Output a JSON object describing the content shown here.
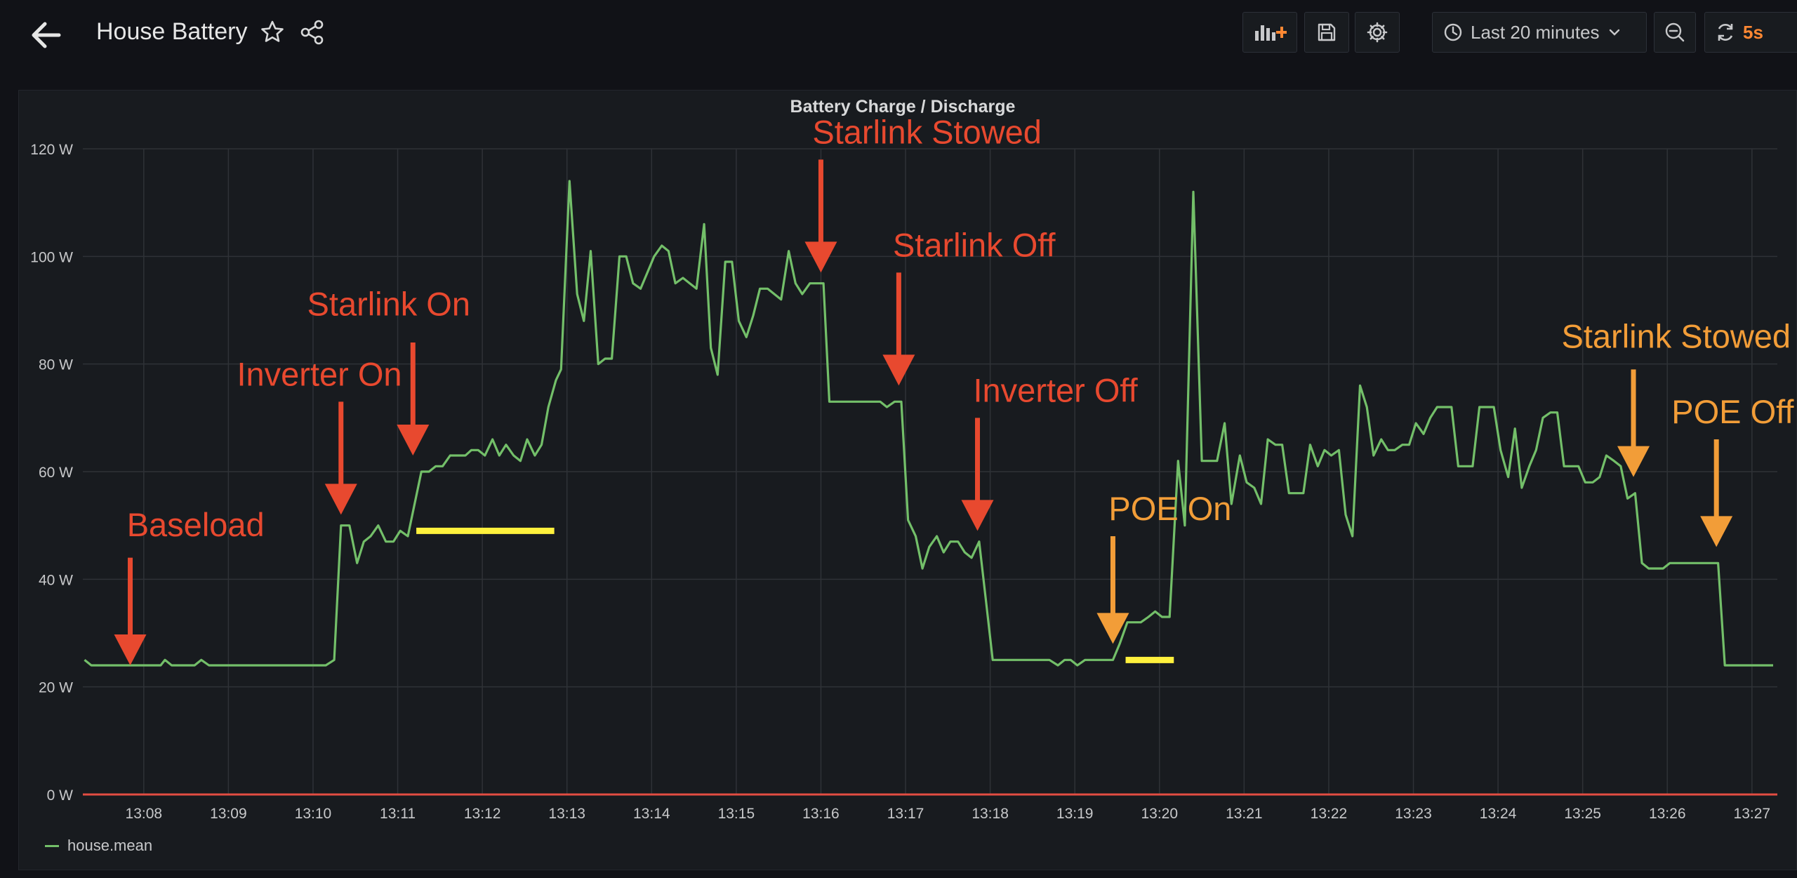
{
  "header": {
    "title": "House Battery",
    "time_range": "Last 20 minutes",
    "refresh_interval": "5s"
  },
  "icons": {
    "back": "back-arrow-icon",
    "star": "star-icon",
    "share": "share-icon",
    "add_panel": "add-panel-icon",
    "save": "save-icon",
    "settings": "gear-icon",
    "clock": "clock-icon",
    "zoom_out": "zoom-out-icon",
    "refresh": "refresh-icon"
  },
  "colors": {
    "series": "#73bf69",
    "annotation_red": "#e8492f",
    "annotation_orange": "#f29d38",
    "highlight_yellow": "#fff13d",
    "zero_line": "#e24d42",
    "refresh_accent": "#ff8833"
  },
  "chart_data": {
    "type": "line",
    "title": "Battery Charge / Discharge",
    "ylim": [
      0,
      120
    ],
    "y_ticks": [
      "0 W",
      "20 W",
      "40 W",
      "60 W",
      "80 W",
      "100 W",
      "120 W"
    ],
    "x_ticks": [
      "13:08",
      "13:09",
      "13:10",
      "13:11",
      "13:12",
      "13:13",
      "13:14",
      "13:15",
      "13:16",
      "13:17",
      "13:18",
      "13:19",
      "13:20",
      "13:21",
      "13:22",
      "13:23",
      "13:24",
      "13:25",
      "13:26",
      "13:27"
    ],
    "x_range_minutes": [
      7.28,
      27.3
    ],
    "x_unit_note": "minutes past 13:00",
    "grid": true,
    "legend_position": "bottom-left",
    "series": [
      {
        "name": "house.mean",
        "points": [
          [
            7.3,
            25
          ],
          [
            7.38,
            24
          ],
          [
            8.2,
            24
          ],
          [
            8.25,
            25
          ],
          [
            8.33,
            24
          ],
          [
            8.6,
            24
          ],
          [
            8.68,
            25
          ],
          [
            8.77,
            24
          ],
          [
            10.15,
            24
          ],
          [
            10.25,
            25
          ],
          [
            10.33,
            50
          ],
          [
            10.43,
            50
          ],
          [
            10.52,
            43
          ],
          [
            10.6,
            47
          ],
          [
            10.68,
            48
          ],
          [
            10.77,
            50
          ],
          [
            10.86,
            47
          ],
          [
            10.95,
            47
          ],
          [
            11.03,
            49
          ],
          [
            11.12,
            48
          ],
          [
            11.28,
            60
          ],
          [
            11.37,
            60
          ],
          [
            11.45,
            61
          ],
          [
            11.53,
            61
          ],
          [
            11.62,
            63
          ],
          [
            11.7,
            63
          ],
          [
            11.8,
            63
          ],
          [
            11.87,
            64
          ],
          [
            11.95,
            64
          ],
          [
            12.03,
            63
          ],
          [
            12.12,
            66
          ],
          [
            12.2,
            63
          ],
          [
            12.28,
            65
          ],
          [
            12.37,
            63
          ],
          [
            12.45,
            62
          ],
          [
            12.53,
            66
          ],
          [
            12.62,
            63
          ],
          [
            12.7,
            65
          ],
          [
            12.78,
            72
          ],
          [
            12.87,
            77
          ],
          [
            12.93,
            79
          ],
          [
            13.03,
            114
          ],
          [
            13.12,
            93
          ],
          [
            13.2,
            88
          ],
          [
            13.28,
            101
          ],
          [
            13.37,
            80
          ],
          [
            13.45,
            81
          ],
          [
            13.53,
            81
          ],
          [
            13.62,
            100
          ],
          [
            13.7,
            100
          ],
          [
            13.78,
            95
          ],
          [
            13.87,
            94
          ],
          [
            13.95,
            97
          ],
          [
            14.03,
            100
          ],
          [
            14.12,
            102
          ],
          [
            14.2,
            101
          ],
          [
            14.28,
            95
          ],
          [
            14.37,
            96
          ],
          [
            14.45,
            95
          ],
          [
            14.53,
            94
          ],
          [
            14.62,
            106
          ],
          [
            14.7,
            83
          ],
          [
            14.78,
            78
          ],
          [
            14.87,
            99
          ],
          [
            14.95,
            99
          ],
          [
            15.03,
            88
          ],
          [
            15.12,
            85
          ],
          [
            15.2,
            89
          ],
          [
            15.28,
            94
          ],
          [
            15.37,
            94
          ],
          [
            15.45,
            93
          ],
          [
            15.53,
            92
          ],
          [
            15.62,
            101
          ],
          [
            15.7,
            95
          ],
          [
            15.78,
            93
          ],
          [
            15.87,
            95
          ],
          [
            15.95,
            95
          ],
          [
            16.03,
            95
          ],
          [
            16.1,
            73
          ],
          [
            16.2,
            73
          ],
          [
            16.7,
            73
          ],
          [
            16.78,
            72
          ],
          [
            16.87,
            73
          ],
          [
            16.95,
            73
          ],
          [
            17.03,
            51
          ],
          [
            17.12,
            48
          ],
          [
            17.2,
            42
          ],
          [
            17.28,
            46
          ],
          [
            17.37,
            48
          ],
          [
            17.45,
            45
          ],
          [
            17.53,
            47
          ],
          [
            17.62,
            47
          ],
          [
            17.7,
            45
          ],
          [
            17.78,
            44
          ],
          [
            17.87,
            47
          ],
          [
            17.95,
            36
          ],
          [
            18.03,
            25
          ],
          [
            18.12,
            25
          ],
          [
            18.7,
            25
          ],
          [
            18.8,
            24
          ],
          [
            18.88,
            25
          ],
          [
            18.95,
            25
          ],
          [
            19.03,
            24
          ],
          [
            19.12,
            25
          ],
          [
            19.45,
            25
          ],
          [
            19.53,
            28
          ],
          [
            19.62,
            32
          ],
          [
            19.7,
            32
          ],
          [
            19.78,
            32
          ],
          [
            19.87,
            33
          ],
          [
            19.95,
            34
          ],
          [
            20.03,
            33
          ],
          [
            20.12,
            33
          ],
          [
            20.22,
            62
          ],
          [
            20.3,
            50
          ],
          [
            20.4,
            112
          ],
          [
            20.5,
            62
          ],
          [
            20.6,
            62
          ],
          [
            20.68,
            62
          ],
          [
            20.77,
            69
          ],
          [
            20.85,
            54
          ],
          [
            20.95,
            63
          ],
          [
            21.03,
            58
          ],
          [
            21.12,
            57
          ],
          [
            21.2,
            54
          ],
          [
            21.28,
            66
          ],
          [
            21.37,
            65
          ],
          [
            21.45,
            65
          ],
          [
            21.53,
            56
          ],
          [
            21.62,
            56
          ],
          [
            21.7,
            56
          ],
          [
            21.78,
            65
          ],
          [
            21.87,
            61
          ],
          [
            21.95,
            64
          ],
          [
            22.03,
            63
          ],
          [
            22.12,
            64
          ],
          [
            22.2,
            52
          ],
          [
            22.28,
            48
          ],
          [
            22.37,
            76
          ],
          [
            22.45,
            72
          ],
          [
            22.53,
            63
          ],
          [
            22.62,
            66
          ],
          [
            22.7,
            64
          ],
          [
            22.78,
            64
          ],
          [
            22.87,
            65
          ],
          [
            22.95,
            65
          ],
          [
            23.03,
            69
          ],
          [
            23.12,
            67
          ],
          [
            23.2,
            70
          ],
          [
            23.28,
            72
          ],
          [
            23.37,
            72
          ],
          [
            23.45,
            72
          ],
          [
            23.53,
            61
          ],
          [
            23.62,
            61
          ],
          [
            23.7,
            61
          ],
          [
            23.78,
            72
          ],
          [
            23.87,
            72
          ],
          [
            23.95,
            72
          ],
          [
            24.03,
            64
          ],
          [
            24.12,
            59
          ],
          [
            24.2,
            68
          ],
          [
            24.28,
            57
          ],
          [
            24.37,
            61
          ],
          [
            24.45,
            64
          ],
          [
            24.53,
            70
          ],
          [
            24.62,
            71
          ],
          [
            24.7,
            71
          ],
          [
            24.78,
            61
          ],
          [
            24.87,
            61
          ],
          [
            24.95,
            61
          ],
          [
            25.03,
            58
          ],
          [
            25.12,
            58
          ],
          [
            25.2,
            59
          ],
          [
            25.28,
            63
          ],
          [
            25.37,
            62
          ],
          [
            25.45,
            61
          ],
          [
            25.53,
            55
          ],
          [
            25.62,
            56
          ],
          [
            25.7,
            43
          ],
          [
            25.78,
            42
          ],
          [
            25.87,
            42
          ],
          [
            25.95,
            42
          ],
          [
            26.03,
            43
          ],
          [
            26.6,
            43
          ],
          [
            26.68,
            24
          ],
          [
            26.77,
            24
          ],
          [
            27.25,
            24
          ]
        ]
      }
    ],
    "annotations": [
      {
        "text": "Baseload",
        "x": 7.84,
        "arrow_from_y": 44,
        "arrow_to_y": 24,
        "label_y": 48,
        "label_x": 7.8,
        "color": "red"
      },
      {
        "text": "Inverter On",
        "x": 10.33,
        "arrow_from_y": 73,
        "arrow_to_y": 52,
        "label_y": 76,
        "label_x": 9.1,
        "color": "red"
      },
      {
        "text": "Starlink On",
        "x": 11.18,
        "arrow_from_y": 84,
        "arrow_to_y": 63,
        "label_y": 89,
        "label_x": 9.93,
        "color": "red"
      },
      {
        "text": "Starlink Stowed",
        "x": 16.0,
        "arrow_from_y": 118,
        "arrow_to_y": 97,
        "label_y": 121,
        "label_x": 15.9,
        "color": "red"
      },
      {
        "text": "Starlink Off",
        "x": 16.92,
        "arrow_from_y": 97,
        "arrow_to_y": 76,
        "label_y": 100,
        "label_x": 16.85,
        "color": "red"
      },
      {
        "text": "Inverter Off",
        "x": 17.85,
        "arrow_from_y": 70,
        "arrow_to_y": 49,
        "label_y": 73,
        "label_x": 17.8,
        "color": "red"
      },
      {
        "text": "POE On",
        "x": 19.45,
        "arrow_from_y": 48,
        "arrow_to_y": 28,
        "label_y": 51,
        "label_x": 19.4,
        "color": "orange"
      },
      {
        "text": "Starlink Stowed",
        "x": 25.6,
        "arrow_from_y": 79,
        "arrow_to_y": 59,
        "label_y": 83,
        "label_x": 24.75,
        "color": "orange"
      },
      {
        "text": "POE Off",
        "x": 26.58,
        "arrow_from_y": 66,
        "arrow_to_y": 46,
        "label_y": 69,
        "label_x": 26.05,
        "color": "orange"
      }
    ],
    "highlights": [
      {
        "x_start": 11.22,
        "x_end": 12.85,
        "y": 49
      },
      {
        "x_start": 19.6,
        "x_end": 20.17,
        "y": 25
      }
    ]
  }
}
